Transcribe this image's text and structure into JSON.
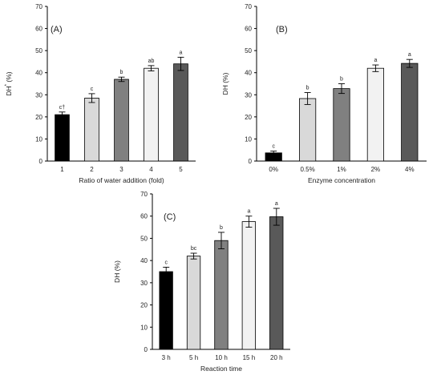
{
  "chart_data": [
    {
      "type": "bar",
      "panel_label": "(A)",
      "categories": [
        "1",
        "2",
        "3",
        "4",
        "5"
      ],
      "values": [
        21,
        28.5,
        37,
        42,
        44
      ],
      "errors": [
        1.2,
        2,
        1,
        1.2,
        3
      ],
      "letters": [
        "c†",
        "c",
        "b",
        "ab",
        "a"
      ],
      "colors": [
        "#000000",
        "#d9d9d9",
        "#808080",
        "#f2f2f2",
        "#595959"
      ],
      "xlabel": "Ratio of water addition (fold)",
      "ylabel_main": "DH",
      "ylabel_sup": "*",
      "ylabel_unit": " (%)",
      "ylim": [
        0,
        70
      ],
      "yticks": [
        "0",
        "10",
        "20",
        "30",
        "40",
        "50",
        "60",
        "70"
      ]
    },
    {
      "type": "bar",
      "panel_label": "(B)",
      "categories": [
        "0%",
        "0.5%",
        "1%",
        "2%",
        "4%"
      ],
      "values": [
        3.7,
        28.3,
        32.8,
        42,
        44.2
      ],
      "errors": [
        0.8,
        2.7,
        2.2,
        1.5,
        1.8
      ],
      "letters": [
        "c",
        "b",
        "b",
        "a",
        "a"
      ],
      "colors": [
        "#000000",
        "#d9d9d9",
        "#808080",
        "#f2f2f2",
        "#595959"
      ],
      "xlabel": "Enzyme concentration",
      "ylabel": "DH (%)",
      "ylim": [
        0,
        70
      ],
      "yticks": [
        "0",
        "10",
        "20",
        "30",
        "40",
        "50",
        "60",
        "70"
      ]
    },
    {
      "type": "bar",
      "panel_label": "(C)",
      "categories": [
        "3 h",
        "5 h",
        "10 h",
        "15 h",
        "20 h"
      ],
      "values": [
        35,
        42,
        49,
        57.5,
        59.7
      ],
      "errors": [
        2,
        1.3,
        3.7,
        2.5,
        3.8
      ],
      "letters": [
        "c",
        "bc",
        "b",
        "a",
        "a"
      ],
      "colors": [
        "#000000",
        "#d9d9d9",
        "#808080",
        "#f2f2f2",
        "#595959"
      ],
      "xlabel": "Reaction time",
      "ylabel": "DH (%)",
      "ylim": [
        0,
        70
      ],
      "yticks": [
        "0",
        "10",
        "20",
        "30",
        "40",
        "50",
        "60",
        "70"
      ]
    }
  ]
}
